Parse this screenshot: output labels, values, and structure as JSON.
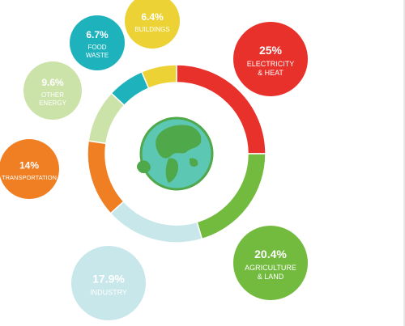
{
  "chart_data": {
    "type": "pie",
    "variant": "donut",
    "title": "",
    "center_icon": "globe-icon",
    "colors": {
      "globe_ocean": "#5cc7b2",
      "globe_land": "#4fa84a",
      "globe_ring": "#4fa84a",
      "label_text": "#ffffff"
    },
    "slices": [
      {
        "id": "electricity",
        "value": 25.0,
        "value_label": "25%",
        "label_lines": [
          "ELECTRICITY",
          "& HEAT"
        ],
        "color": "#e8312a",
        "bubble_color": "#e8312a"
      },
      {
        "id": "agriculture",
        "value": 20.4,
        "value_label": "20.4%",
        "label_lines": [
          "AGRICULTURE",
          "& LAND"
        ],
        "color": "#72bb3f",
        "bubble_color": "#72bb3f"
      },
      {
        "id": "industry",
        "value": 17.9,
        "value_label": "17.9%",
        "label_lines": [
          "INDUSTRY"
        ],
        "color": "#c8e7ea",
        "bubble_color": "#c8e7ea"
      },
      {
        "id": "transportation",
        "value": 14.0,
        "value_label": "14%",
        "label_lines": [
          "TRANSPORTATION"
        ],
        "color": "#f07f24",
        "bubble_color": "#f07f24"
      },
      {
        "id": "other-energy",
        "value": 9.6,
        "value_label": "9.6%",
        "label_lines": [
          "OTHER",
          "ENERGY"
        ],
        "color": "#cbe3a8",
        "bubble_color": "#cbe3a8"
      },
      {
        "id": "food-waste",
        "value": 6.7,
        "value_label": "6.7%",
        "label_lines": [
          "FOOD",
          "WASTE"
        ],
        "color": "#1eb2bd",
        "bubble_color": "#1eb2bd"
      },
      {
        "id": "buildings",
        "value": 6.4,
        "value_label": "6.4%",
        "label_lines": [
          "BUILDINGS"
        ],
        "color": "#ecd234",
        "bubble_color": "#ecd234"
      }
    ]
  }
}
